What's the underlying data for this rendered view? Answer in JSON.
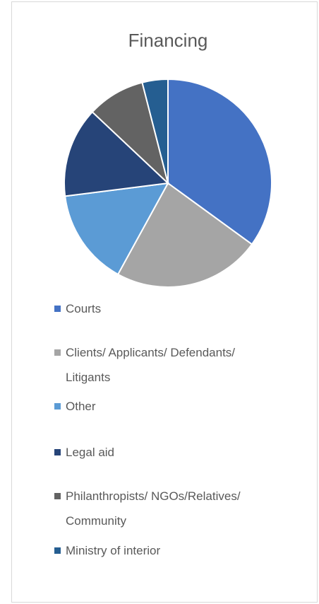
{
  "chart_data": {
    "type": "pie",
    "title": "Financing",
    "categories": [
      "Courts",
      "Clients/ Applicants/ Defendants/ Litigants",
      "Other",
      "Legal aid",
      "Philanthropists/ NGOs/Relatives/ Community",
      "Ministry of interior"
    ],
    "values": [
      35,
      23,
      15,
      14,
      9,
      4
    ],
    "colors": [
      "#4472c4",
      "#a5a5a5",
      "#5b9bd5",
      "#264478",
      "#636363",
      "#255e91"
    ],
    "legend": "bottom"
  }
}
